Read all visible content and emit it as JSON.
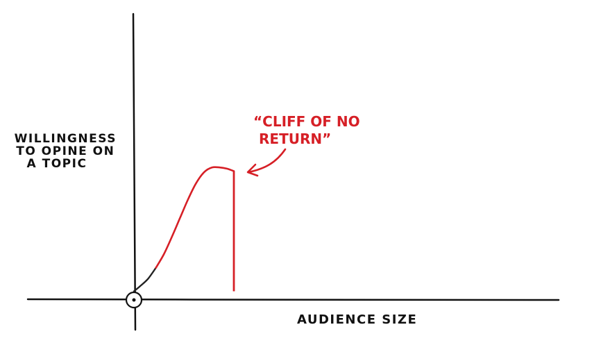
{
  "chart_data": {
    "type": "line",
    "title": "",
    "xlabel": "AUDIENCE SIZE",
    "ylabel_lines": [
      "WILLINGNESS",
      "TO OPINE ON",
      "A TOPIC"
    ],
    "annotation_lines": [
      "“CLIFF OF NO",
      "RETURN”"
    ],
    "series": [
      {
        "x": [
          0,
          0.06,
          0.14,
          0.22,
          0.3,
          0.38,
          0.46,
          0.54,
          0.62,
          0.7,
          0.78,
          0.86,
          0.93,
          1.0
        ],
        "y": [
          0,
          0.04,
          0.1,
          0.19,
          0.3,
          0.44,
          0.59,
          0.74,
          0.87,
          0.96,
          1.0,
          1.0,
          0.99,
          0.97
        ]
      }
    ],
    "cliff": {
      "x": 1.0,
      "y_from": 0.97,
      "y_to": 0
    },
    "xlim": [
      0,
      4.25
    ],
    "ylim": [
      -0.07,
      2.24
    ],
    "grid": false,
    "colors": {
      "axis": "#111111",
      "curve_start": "#222222",
      "curve": "#d61f26",
      "annotation": "#d61f26"
    }
  }
}
